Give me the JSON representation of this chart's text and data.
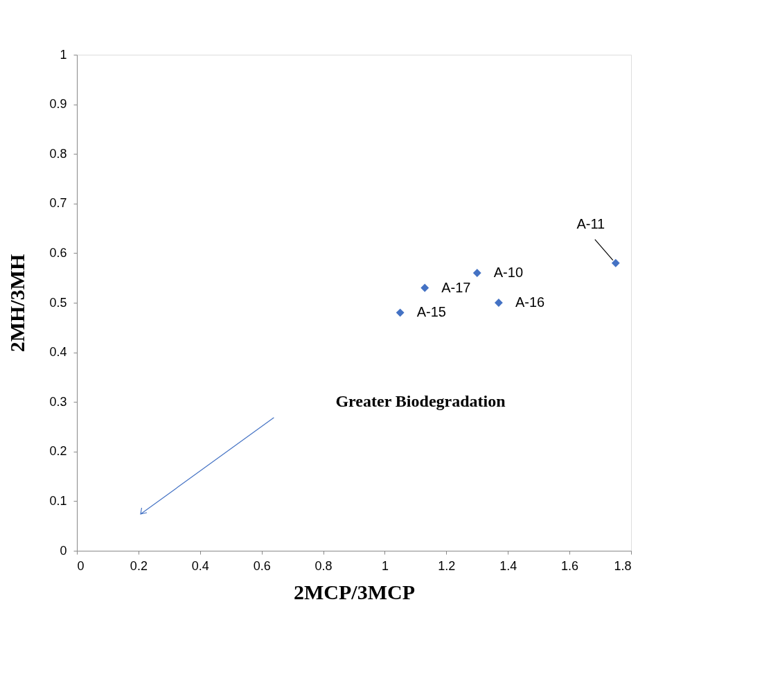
{
  "chart_data": {
    "type": "scatter",
    "xlabel": "2MCP/3MCP",
    "ylabel": "2MH/3MH",
    "x": [
      1.05,
      1.13,
      1.3,
      1.37,
      1.75
    ],
    "series": [
      {
        "color": "#4472c4",
        "values": [
          0.48,
          0.53,
          0.56,
          0.5,
          0.58
        ]
      }
    ],
    "xlim": [
      0,
      1.8
    ],
    "xticks": [
      0,
      0.2,
      0.4,
      0.6,
      0.8,
      1,
      1.2,
      1.4,
      1.6,
      1.8
    ],
    "ylim": [
      0,
      1
    ],
    "yticks": [
      0,
      0.1,
      0.2,
      0.3,
      0.4,
      0.5,
      0.6,
      0.7,
      0.8,
      0.9,
      1
    ],
    "marker": "diamond",
    "grid": false,
    "legend": false,
    "annotations": [
      {
        "text": "A-15",
        "x": 1.05,
        "y": 0.48
      },
      {
        "text": "A-17",
        "x": 1.13,
        "y": 0.53
      },
      {
        "text": "A-10",
        "x": 1.3,
        "y": 0.56
      },
      {
        "text": "A-16",
        "x": 1.37,
        "y": 0.5
      },
      {
        "text": "A-11",
        "x": 1.75,
        "y": 0.58
      },
      "Greater Biodegradation"
    ]
  }
}
